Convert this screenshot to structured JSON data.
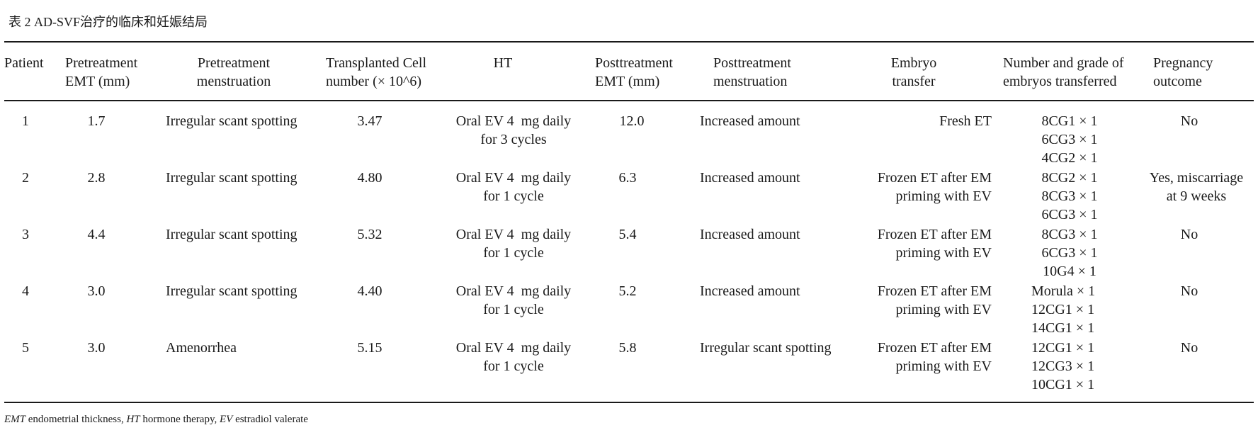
{
  "caption": "表 2  AD-SVF治疗的临床和妊娠结局",
  "headers": {
    "patient": "Patient",
    "pre_emt": "Pretreatment\nEMT (mm)",
    "pre_mens": "Pretreatment\nmenstruation",
    "cells": "Transplanted Cell\nnumber (× 10^6)",
    "ht": "HT",
    "post_emt": "Posttreatment\nEMT (mm)",
    "post_mens": "Posttreatment\nmenstruation",
    "embryo": "Embryo\ntransfer",
    "grade": "Number and grade of\nembryos transferred",
    "outcome": "Pregnancy\noutcome"
  },
  "rows": [
    {
      "patient": "1",
      "pre_emt": "1.7",
      "pre_mens": "Irregular scant spotting",
      "cells": "3.47",
      "ht": "Oral EV 4  mg daily\nfor 3 cycles",
      "post_emt": "12.0",
      "post_mens": "Increased amount",
      "embryo": "Fresh ET",
      "grade": "8CG1 × 1\n6CG3 × 1\n4CG2 × 1",
      "outcome": "No"
    },
    {
      "patient": "2",
      "pre_emt": "2.8",
      "pre_mens": "Irregular scant spotting",
      "cells": "4.80",
      "ht": "Oral EV 4  mg daily\nfor 1 cycle",
      "post_emt": "6.3",
      "post_mens": "Increased amount",
      "embryo": "Frozen ET after EM\npriming with EV",
      "grade": "8CG2 × 1\n8CG3 × 1\n6CG3 × 1",
      "outcome": "Yes, miscarriage\nat 9 weeks"
    },
    {
      "patient": "3",
      "pre_emt": "4.4",
      "pre_mens": "Irregular scant spotting",
      "cells": "5.32",
      "ht": "Oral EV 4  mg daily\nfor 1 cycle",
      "post_emt": "5.4",
      "post_mens": "Increased amount",
      "embryo": "Frozen ET after EM\npriming with EV",
      "grade": "8CG3 × 1\n6CG3 × 1\n10G4 × 1",
      "outcome": "No"
    },
    {
      "patient": "4",
      "pre_emt": "3.0",
      "pre_mens": "Irregular scant spotting",
      "cells": "4.40",
      "ht": "Oral EV 4  mg daily\nfor 1 cycle",
      "post_emt": "5.2",
      "post_mens": "Increased amount",
      "embryo": "Frozen ET after EM\npriming with EV",
      "grade": "Morula × 1\n12CG1 × 1\n14CG1 × 1",
      "outcome": "No"
    },
    {
      "patient": "5",
      "pre_emt": "3.0",
      "pre_mens": "Amenorrhea",
      "cells": "5.15",
      "ht": "Oral EV 4  mg daily\nfor 1 cycle",
      "post_emt": "5.8",
      "post_mens": "Irregular scant spotting",
      "embryo": "Frozen ET after EM\npriming with EV",
      "grade": "12CG1 × 1\n12CG3 × 1\n10CG1 × 1",
      "outcome": "No"
    }
  ],
  "footnote": {
    "emt_abbr": "EMT",
    "emt_def": " endometrial thickness, ",
    "ht_abbr": "HT",
    "ht_def": " hormone therapy, ",
    "ev_abbr": "EV",
    "ev_def": " estradiol valerate"
  }
}
